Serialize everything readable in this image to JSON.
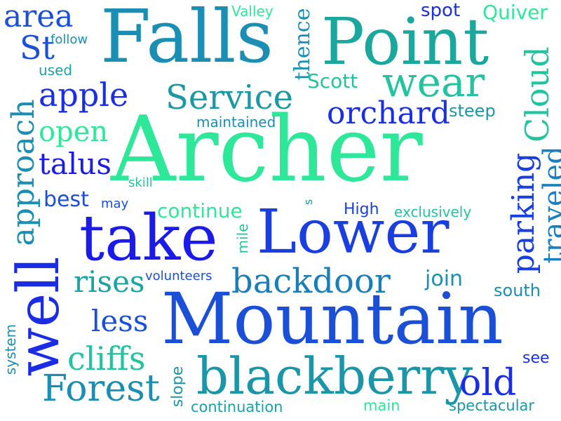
{
  "cloud": {
    "words": {
      "archer": "Archer",
      "mountain": "Mountain",
      "falls": "Falls",
      "point": "Point",
      "lower": "Lower",
      "take": "take",
      "well": "well",
      "blackberry": "blackberry",
      "backdoor": "backdoor",
      "wear": "wear",
      "orchard": "orchard",
      "service": "Service",
      "apple": "apple",
      "approach": "approach",
      "forest": "Forest",
      "cloud": "Cloud",
      "parking": "parking",
      "traveled": "traveled",
      "area": "area",
      "st": "St",
      "open": "open",
      "talus": "talus",
      "cliffs": "cliffs",
      "rises": "rises",
      "less": "less",
      "old": "old",
      "continue": "continue",
      "best": "best",
      "join": "join",
      "south": "south",
      "spot": "spot",
      "quiver": "Quiver",
      "scott": "Scott",
      "steep": "steep",
      "thence": "thence",
      "high": "High",
      "maintained": "maintained",
      "exclusively": "exclusively",
      "volunteers": "volunteers",
      "continuation": "continuation",
      "spectacular": "spectacular",
      "main": "main",
      "see": "see",
      "valley": "Valley",
      "follow": "follow",
      "used": "used",
      "skill": "skill",
      "may": "may",
      "s": "s",
      "mile": "mile",
      "slope": "slope",
      "system": "system"
    },
    "colors": {
      "blue": "#1a1aeb",
      "mid_blue": "#1b4fd8",
      "teal_blue": "#1f7fbf",
      "teal": "#1aa3a3",
      "green_teal": "#22c4a0",
      "green": "#2ee89a"
    }
  }
}
